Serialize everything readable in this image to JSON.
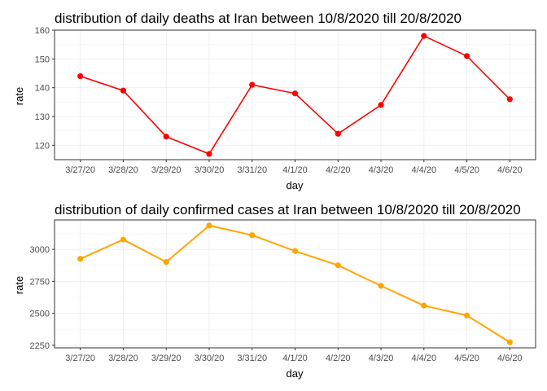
{
  "chart_data": [
    {
      "type": "line",
      "title": "distribution of daily deaths at Iran between 10/8/2020 till 20/8/2020",
      "xlabel": "day",
      "ylabel": "rate",
      "categories": [
        "3/27/20",
        "3/28/20",
        "3/29/20",
        "3/30/20",
        "3/31/20",
        "4/1/20",
        "4/2/20",
        "4/3/20",
        "4/4/20",
        "4/5/20",
        "4/6/20"
      ],
      "values": [
        144,
        139,
        123,
        117,
        141,
        138,
        124,
        134,
        158,
        151,
        136
      ],
      "ylim": [
        115,
        160
      ],
      "yticks": [
        120,
        130,
        140,
        150,
        160
      ],
      "color": "#ff0000",
      "grid": true,
      "legend": "none"
    },
    {
      "type": "line",
      "title": "distribution of daily confirmed cases at Iran between 10/8/2020 till 20/8/2020",
      "xlabel": "day",
      "ylabel": "rate",
      "categories": [
        "3/27/20",
        "3/28/20",
        "3/29/20",
        "3/30/20",
        "3/31/20",
        "4/1/20",
        "4/2/20",
        "4/3/20",
        "4/4/20",
        "4/5/20",
        "4/6/20"
      ],
      "values": [
        2926,
        3076,
        2901,
        3186,
        3111,
        2987,
        2875,
        2715,
        2560,
        2483,
        2274
      ],
      "ylim": [
        2230,
        3230
      ],
      "yticks": [
        2250,
        2500,
        2750,
        3000
      ],
      "color": "#ffa500",
      "grid": true,
      "legend": "none"
    }
  ]
}
